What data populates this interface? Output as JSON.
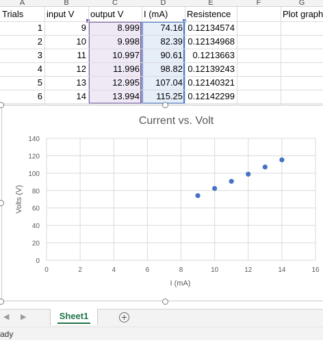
{
  "columns": [
    "A",
    "B",
    "C",
    "D",
    "E",
    "F",
    "G"
  ],
  "headers": {
    "trials": "Trials",
    "input_v": "input V",
    "output_v": "output V",
    "i_ma": "I (mA)",
    "resistence": "Resistence",
    "plot": "Plot graph"
  },
  "rows": [
    {
      "trial": "1",
      "input": "9",
      "output": "8.999",
      "current": "74.16",
      "resist": "0.12134574"
    },
    {
      "trial": "2",
      "input": "10",
      "output": "9.998",
      "current": "82.39",
      "resist": "0.12134968"
    },
    {
      "trial": "3",
      "input": "11",
      "output": "10.997",
      "current": "90.61",
      "resist": "0.1213663"
    },
    {
      "trial": "4",
      "input": "12",
      "output": "11.996",
      "current": "98.82",
      "resist": "0.12139243"
    },
    {
      "trial": "5",
      "input": "13",
      "output": "12.995",
      "current": "107.04",
      "resist": "0.12140321"
    },
    {
      "trial": "6",
      "input": "14",
      "output": "13.994",
      "current": "115.25",
      "resist": "0.12142299"
    }
  ],
  "chart_data": {
    "type": "scatter",
    "title": "Current vs. Volt",
    "xlabel": "I (mA)",
    "ylabel": "Volts (V)",
    "xlim": [
      0,
      16
    ],
    "ylim": [
      0,
      140
    ],
    "xticks": [
      0,
      2,
      4,
      6,
      8,
      10,
      12,
      14,
      16
    ],
    "yticks": [
      0,
      20,
      40,
      60,
      80,
      100,
      120,
      140
    ],
    "grid": true,
    "marker_color": "#4472c4",
    "x": [
      9,
      10,
      11,
      12,
      13,
      14
    ],
    "y": [
      74.16,
      82.39,
      90.61,
      98.82,
      107.04,
      115.25
    ]
  },
  "tabs": {
    "active": "Sheet1",
    "add_icon": "plus-circle-icon",
    "prev_icon": "chevron-left-icon",
    "next_icon": "chevron-right-icon"
  },
  "status": {
    "text": "ady"
  },
  "colors": {
    "purple_range": "#7b5fa8",
    "blue_range": "#4a78c8",
    "tab_green": "#217346"
  }
}
